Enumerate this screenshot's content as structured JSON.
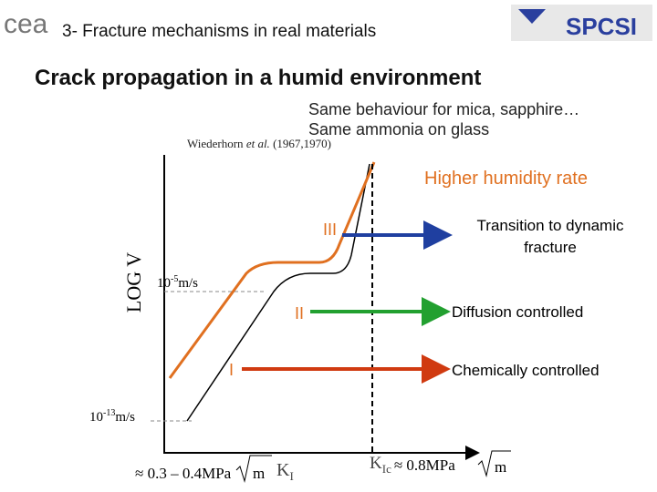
{
  "header": {
    "logo_left": "cea",
    "title": "3- Fracture mechanisms in real materials",
    "logo_right": "SPCSI"
  },
  "title": "Crack propagation in a humid environment",
  "notes": [
    "Same behaviour for mica, sapphire…",
    "Same ammonia on glass"
  ],
  "citation": {
    "authors": "Wiederhorn",
    "etal": "et al.",
    "years": "(1967,1970)"
  },
  "diagram": {
    "y_axis_label": "LOG V",
    "humidity_label": "Higher humidity rate",
    "speed_high": {
      "base": "10",
      "exp": "-5",
      "unit": "m/s"
    },
    "speed_low": {
      "base": "10",
      "exp": "-13",
      "unit": "m/s"
    },
    "regions": [
      {
        "label": "III",
        "text": [
          "Transition to dynamic",
          "fracture"
        ]
      },
      {
        "label": "II",
        "text": [
          "Diffusion controlled"
        ]
      },
      {
        "label": "I",
        "text": [
          "Chemically controlled"
        ]
      }
    ],
    "threshold": {
      "prefix": "≈ 0.3 – 0.4MPa",
      "root": "m"
    },
    "k_label": {
      "main": "K",
      "sub": "I"
    },
    "kic": {
      "main": "K",
      "sub": "Ic",
      "value": "≈ 0.8MPa",
      "root": "m"
    }
  }
}
